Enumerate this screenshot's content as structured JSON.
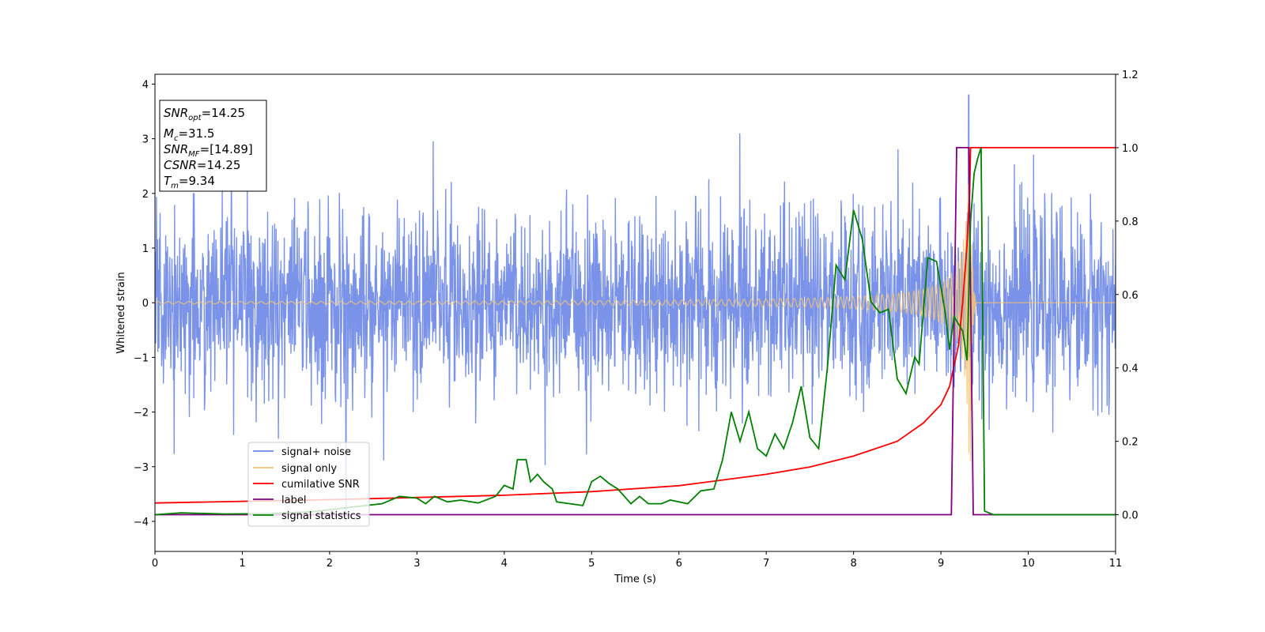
{
  "chart_data": {
    "type": "line",
    "title": "",
    "xlabel": "Time (s)",
    "ylabel": "Whitened strain",
    "xlim": [
      0,
      11
    ],
    "ylim": [
      -4.55,
      4.18
    ],
    "y2lim": [
      -0.1,
      1.2
    ],
    "x_ticks": [
      "0",
      "1",
      "2",
      "3",
      "4",
      "5",
      "6",
      "7",
      "8",
      "9",
      "10",
      "11"
    ],
    "y_ticks": [
      "−4",
      "−3",
      "−2",
      "−1",
      "0",
      "1",
      "2",
      "3",
      "4"
    ],
    "y2_ticks": [
      "0.0",
      "0.2",
      "0.4",
      "0.6",
      "0.8",
      "1.0",
      "1.2"
    ],
    "grid": false,
    "legend_position": "lower-left",
    "info_box": {
      "snr_opt": "=14.25",
      "mc": "=31.5",
      "snr_mf": "=[14.89]",
      "csnr": "=14.25",
      "tm": "=9.34"
    },
    "series": [
      {
        "name": "signal+ noise",
        "axis": "left",
        "color": "#6b87e6",
        "description_values": {
          "baseline_std": 0.85,
          "typical_range": [
            -2.7,
            2.7
          ],
          "max_value": 3.8,
          "max_time": 9.32
        }
      },
      {
        "name": "signal only",
        "axis": "left",
        "color": "#f5c46e",
        "chirp": {
          "start_amplitude": 0.02,
          "merger_time": 9.34,
          "peak_amplitude": 2.9,
          "end_time": 9.4
        }
      },
      {
        "name": "cumilative SNR",
        "axis": "right",
        "color": "#ff0000",
        "points": [
          [
            0,
            0.032
          ],
          [
            2,
            0.041
          ],
          [
            4,
            0.053
          ],
          [
            5,
            0.063
          ],
          [
            6,
            0.079
          ],
          [
            7,
            0.11
          ],
          [
            7.5,
            0.13
          ],
          [
            8,
            0.16
          ],
          [
            8.5,
            0.2
          ],
          [
            8.8,
            0.25
          ],
          [
            9.0,
            0.3
          ],
          [
            9.1,
            0.35
          ],
          [
            9.2,
            0.46
          ],
          [
            9.25,
            0.58
          ],
          [
            9.3,
            0.74
          ],
          [
            9.33,
            0.88
          ],
          [
            9.34,
            1.0
          ],
          [
            11,
            1.0
          ]
        ]
      },
      {
        "name": "label",
        "axis": "right",
        "color": "#800080",
        "points": [
          [
            0,
            0.0
          ],
          [
            9.12,
            0.0
          ],
          [
            9.18,
            1.0
          ],
          [
            9.32,
            1.0
          ],
          [
            9.37,
            0.0
          ],
          [
            11,
            0.0
          ]
        ]
      },
      {
        "name": "signal statistics",
        "axis": "right",
        "color": "#008000",
        "points": [
          [
            0,
            0.0
          ],
          [
            0.3,
            0.005
          ],
          [
            0.8,
            0.002
          ],
          [
            1.3,
            0.003
          ],
          [
            1.8,
            0.008
          ],
          [
            2.3,
            0.022
          ],
          [
            2.6,
            0.03
          ],
          [
            2.8,
            0.05
          ],
          [
            3.0,
            0.045
          ],
          [
            3.1,
            0.03
          ],
          [
            3.2,
            0.05
          ],
          [
            3.35,
            0.035
          ],
          [
            3.5,
            0.04
          ],
          [
            3.7,
            0.032
          ],
          [
            3.9,
            0.05
          ],
          [
            4.0,
            0.08
          ],
          [
            4.1,
            0.07
          ],
          [
            4.15,
            0.15
          ],
          [
            4.25,
            0.15
          ],
          [
            4.3,
            0.09
          ],
          [
            4.38,
            0.11
          ],
          [
            4.45,
            0.09
          ],
          [
            4.55,
            0.07
          ],
          [
            4.6,
            0.035
          ],
          [
            4.9,
            0.025
          ],
          [
            5.0,
            0.09
          ],
          [
            5.1,
            0.105
          ],
          [
            5.2,
            0.085
          ],
          [
            5.3,
            0.07
          ],
          [
            5.45,
            0.03
          ],
          [
            5.55,
            0.05
          ],
          [
            5.65,
            0.03
          ],
          [
            5.8,
            0.03
          ],
          [
            5.9,
            0.04
          ],
          [
            6.1,
            0.03
          ],
          [
            6.25,
            0.065
          ],
          [
            6.4,
            0.07
          ],
          [
            6.5,
            0.15
          ],
          [
            6.6,
            0.28
          ],
          [
            6.7,
            0.2
          ],
          [
            6.8,
            0.28
          ],
          [
            6.9,
            0.18
          ],
          [
            7.0,
            0.16
          ],
          [
            7.1,
            0.22
          ],
          [
            7.2,
            0.18
          ],
          [
            7.3,
            0.25
          ],
          [
            7.4,
            0.35
          ],
          [
            7.5,
            0.21
          ],
          [
            7.6,
            0.18
          ],
          [
            7.7,
            0.4
          ],
          [
            7.8,
            0.68
          ],
          [
            7.9,
            0.64
          ],
          [
            8.0,
            0.83
          ],
          [
            8.1,
            0.75
          ],
          [
            8.2,
            0.58
          ],
          [
            8.3,
            0.55
          ],
          [
            8.4,
            0.56
          ],
          [
            8.5,
            0.37
          ],
          [
            8.6,
            0.33
          ],
          [
            8.7,
            0.43
          ],
          [
            8.75,
            0.41
          ],
          [
            8.85,
            0.7
          ],
          [
            8.95,
            0.69
          ],
          [
            9.05,
            0.55
          ],
          [
            9.1,
            0.45
          ],
          [
            9.15,
            0.54
          ],
          [
            9.2,
            0.52
          ],
          [
            9.25,
            0.5
          ],
          [
            9.3,
            0.42
          ],
          [
            9.34,
            0.8
          ],
          [
            9.38,
            0.93
          ],
          [
            9.42,
            0.97
          ],
          [
            9.46,
            1.0
          ],
          [
            9.5,
            0.01
          ],
          [
            9.6,
            0.0
          ],
          [
            11,
            0.0
          ]
        ]
      }
    ]
  }
}
